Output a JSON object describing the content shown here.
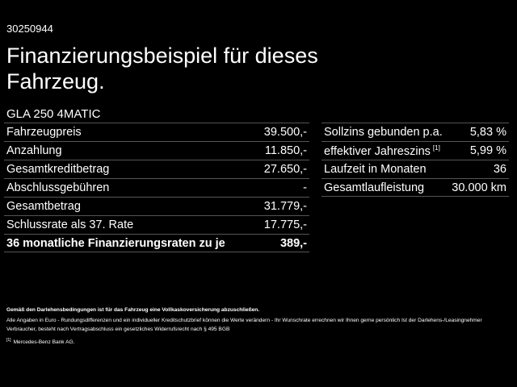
{
  "reference_number": "30250944",
  "title": "Finanzierungsbeispiel für dieses Fahrzeug.",
  "model": "GLA 250 4MATIC",
  "left_table": [
    {
      "label": "Fahrzeugpreis",
      "value": "39.500,-"
    },
    {
      "label": "Anzahlung",
      "value": "11.850,-"
    },
    {
      "label": "Gesamtkreditbetrag",
      "value": "27.650,-"
    },
    {
      "label": "Abschlussgebühren",
      "value": "-"
    },
    {
      "label": "Gesamtbetrag",
      "value": "31.779,-"
    },
    {
      "label": "Schlussrate als 37. Rate",
      "value": "17.775,-"
    },
    {
      "label": "36 monatliche Finanzierungsraten zu je",
      "value": "389,-"
    }
  ],
  "right_table": [
    {
      "label": "Sollzins gebunden p.a.",
      "value": "5,83 %"
    },
    {
      "label": "effektiver Jahreszins",
      "footnote": "[1]",
      "value": "5,99 %"
    },
    {
      "label": "Laufzeit in Monaten",
      "value": "36"
    },
    {
      "label": "Gesamtlaufleistung",
      "value": "30.000 km"
    }
  ],
  "footer": {
    "insurance_note": "Gemäß den Darlehensbedingungen ist für das Fahrzeug eine Vollkaskoversicherung abzuschließen.",
    "disclaimer": "Alle Angaben in Euro - Rundungsdifferenzen und ein individueller Kreditschutzbrief können die Werte verändern - Ihr Wunschrate errechnen wir Ihnen gerne persönlich Ist der Darlehens-/Leasingnehmer Verbraucher, besteht nach Vertragsabschluss ein gesetzliches Widerrufsrecht nach § 495 BGB",
    "footnote_marker": "[1]",
    "footnote_text": "Mercedes-Benz Bank AG."
  }
}
